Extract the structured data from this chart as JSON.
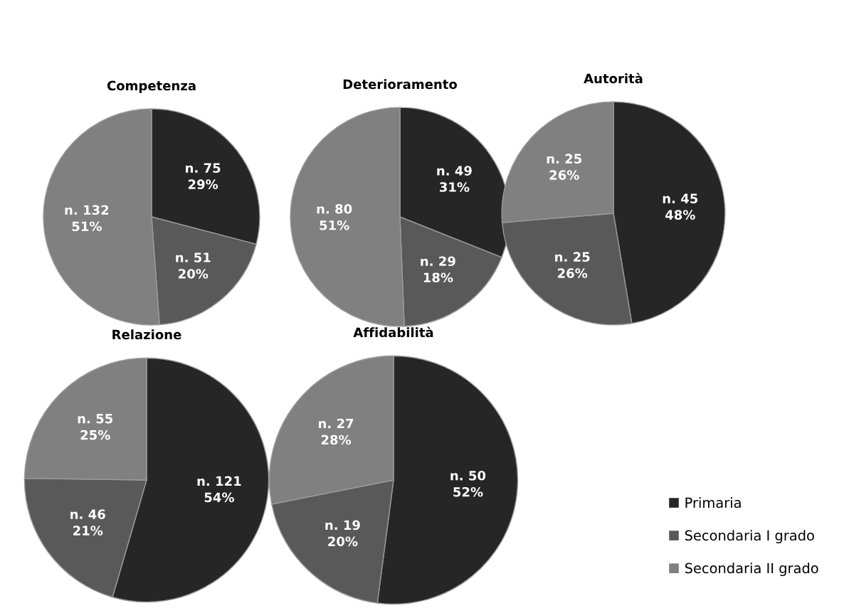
{
  "chart_data": [
    {
      "type": "pie",
      "title": "Competenza",
      "categories": [
        "Primaria",
        "Secondaria I grado",
        "Secondaria II grado"
      ],
      "values": [
        75,
        51,
        132
      ],
      "colors": [
        "#262626",
        "#595959",
        "#808080"
      ],
      "value_labels": [
        "n. 75\n29%",
        "n. 51\n20%",
        "n. 132\n51%"
      ],
      "legend": "bottom right"
    },
    {
      "type": "pie",
      "title": "Deterioramento",
      "categories": [
        null,
        null,
        null
      ],
      "values": [
        49,
        29,
        80
      ],
      "colors": [
        "#262626",
        "#595959",
        "#808080"
      ],
      "value_labels": [
        "n. 49\n31%",
        "n. 29\n18%",
        "n. 80\n51%"
      ]
    },
    {
      "type": "pie",
      "title": "Autorità",
      "categories": [
        null,
        null,
        null
      ],
      "values": [
        45,
        25,
        25
      ],
      "colors": [
        "#262626",
        "#595959",
        "#808080"
      ],
      "value_labels": [
        "n. 45\n48%",
        "n. 25\n26%",
        "n. 25\n26%"
      ]
    },
    {
      "type": "pie",
      "title": "Relazione",
      "categories": [
        null,
        null,
        null
      ],
      "values": [
        121,
        46,
        55
      ],
      "colors": [
        "#262626",
        "#595959",
        "#808080"
      ],
      "value_labels": [
        "n. 121\n54%",
        "n. 46\n21%",
        "n. 55\n25%"
      ]
    },
    {
      "type": "pie",
      "title": "Affidabilità",
      "categories": [
        null,
        null,
        null
      ],
      "values": [
        50,
        19,
        27
      ],
      "colors": [
        "#262626",
        "#595959",
        "#808080"
      ],
      "value_labels": [
        "n. 50\n52%",
        "n. 19\n20%",
        "n. 27\n28%"
      ]
    }
  ]
}
